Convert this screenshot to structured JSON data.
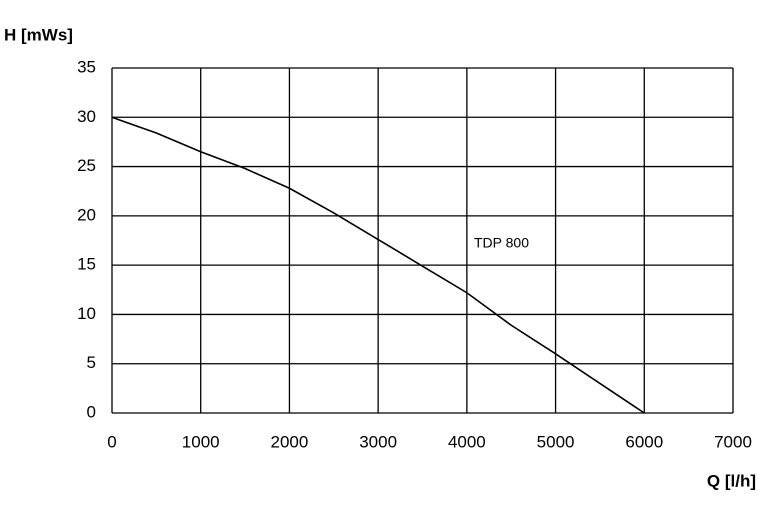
{
  "chart_data": {
    "type": "line",
    "x_label": "Q [l/h]",
    "y_label": "H [mWs]",
    "x": [
      0,
      500,
      1000,
      1500,
      2000,
      2500,
      3000,
      3500,
      4000,
      4500,
      5000,
      5500,
      6000
    ],
    "series": [
      {
        "name": "TDP 800",
        "color": "#000000",
        "values": [
          30,
          28.4,
          26.5,
          24.8,
          22.8,
          20.3,
          17.6,
          14.9,
          12.2,
          8.9,
          6.0,
          3.0,
          0
        ]
      }
    ],
    "xlim": [
      0,
      7000
    ],
    "xticks": [
      0,
      1000,
      2000,
      3000,
      4000,
      5000,
      6000,
      7000
    ],
    "ylim": [
      0,
      35
    ],
    "yticks": [
      0,
      5,
      10,
      15,
      20,
      25,
      30,
      35
    ],
    "grid": true
  }
}
